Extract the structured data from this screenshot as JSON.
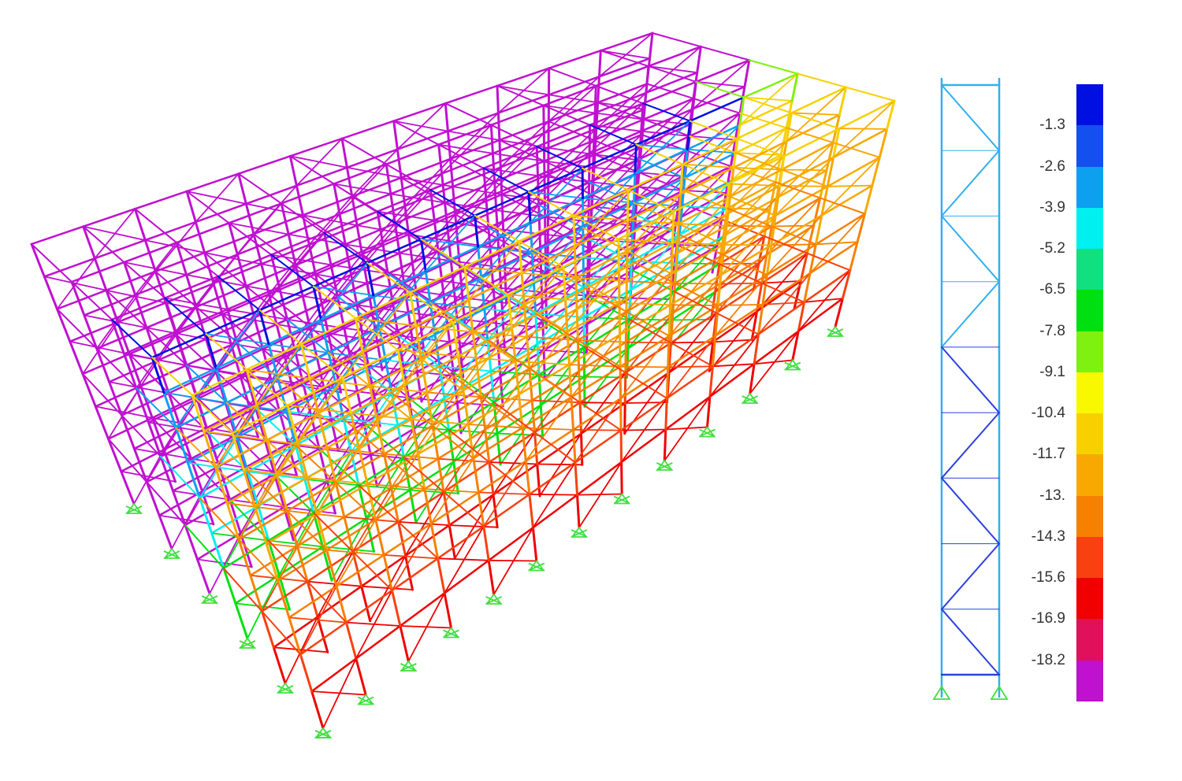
{
  "legend": {
    "labels": [
      "-1.3",
      "-2.6",
      "-3.9",
      "-5.2",
      "-6.5",
      "-7.8",
      "-9.1",
      "-10.4",
      "-11.7",
      "-13.",
      "-14.3",
      "-15.6",
      "-16.9",
      "-18.2"
    ],
    "colors": [
      "#0010e0",
      "#1450f0",
      "#0ea0f0",
      "#00f0f0",
      "#10e080",
      "#00e010",
      "#80f010",
      "#f8f800",
      "#f8d000",
      "#f8a800",
      "#f88000",
      "#f84010",
      "#f00000",
      "#e0105a",
      "#c010d0"
    ]
  },
  "support_color": "#40e040",
  "elevation_colors": {
    "upper": "#30b0f0",
    "lower": "#2a40e0"
  }
}
